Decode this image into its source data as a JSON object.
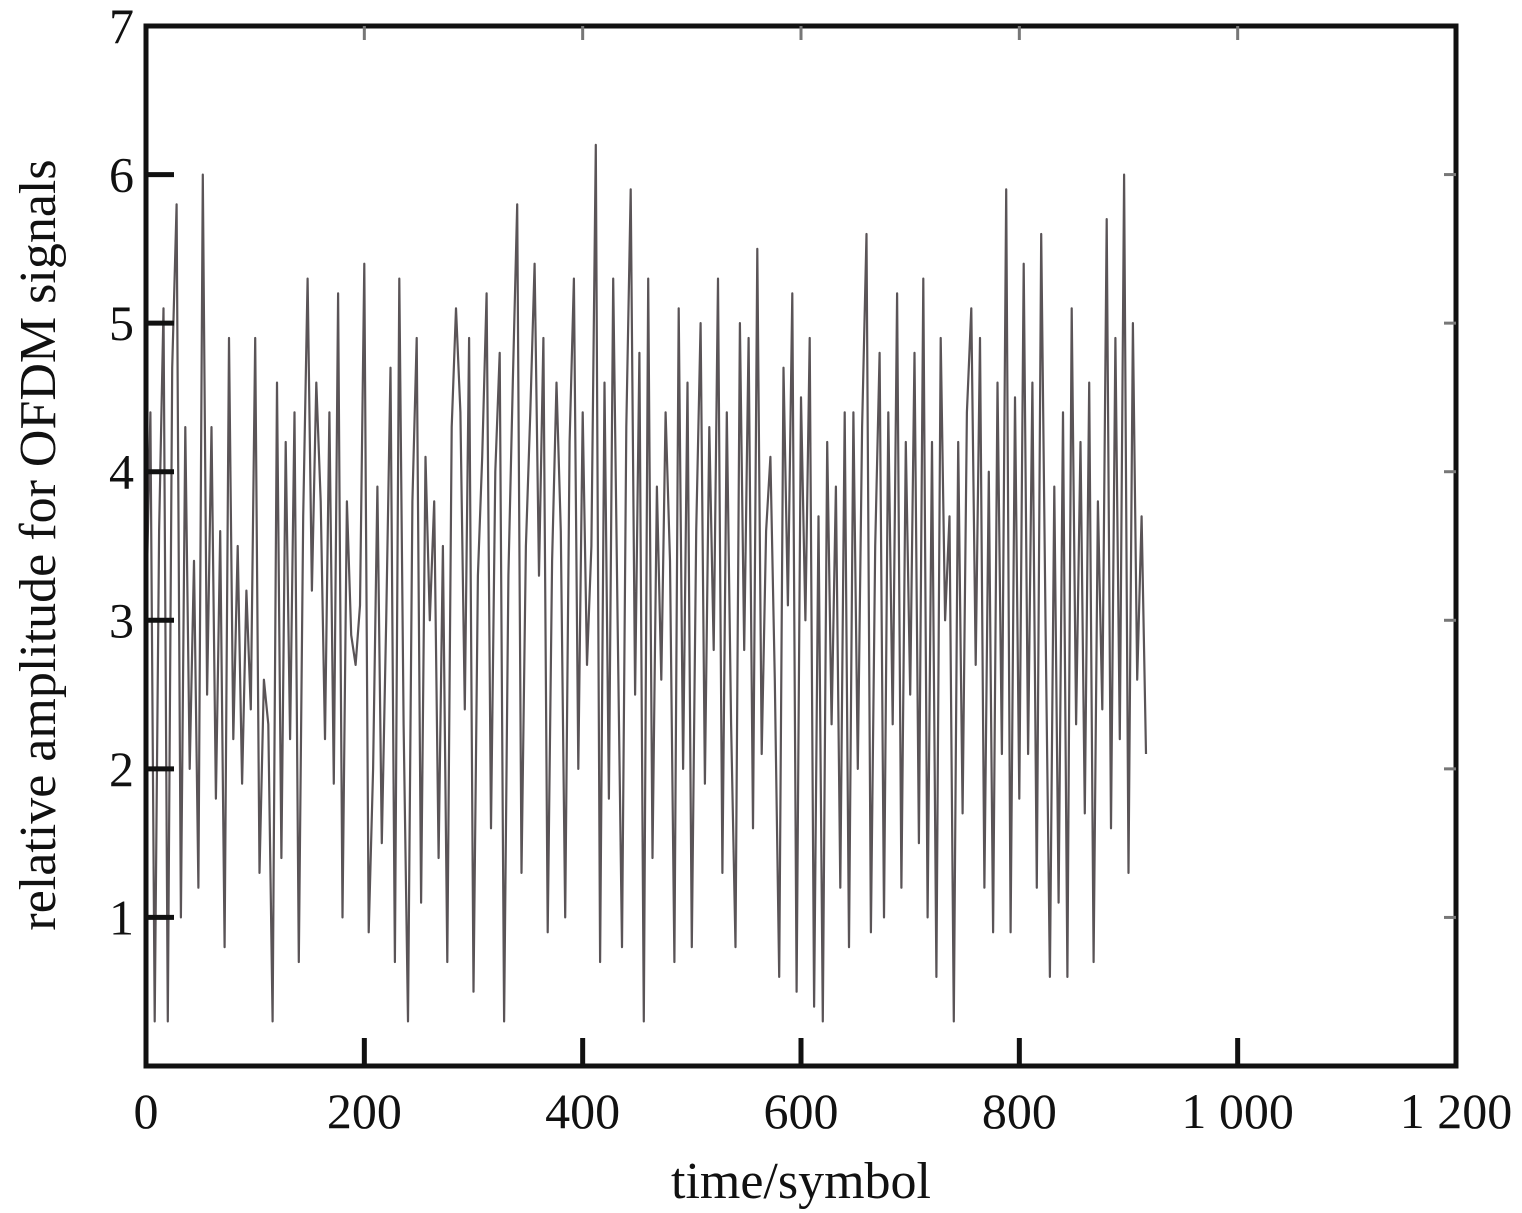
{
  "chart_data": {
    "type": "line",
    "title": "",
    "xlabel": "time/symbol",
    "ylabel": "relative amplitude for OFDM signals",
    "xlim": [
      0,
      1200
    ],
    "ylim": [
      0,
      7
    ],
    "xticks": [
      0,
      200,
      400,
      600,
      800,
      1000,
      1200
    ],
    "xtick_labels": [
      "0",
      "200",
      "400",
      "600",
      "800",
      "1 000",
      "1 200"
    ],
    "yticks": [
      1,
      2,
      3,
      4,
      5,
      6,
      7
    ],
    "ytick_labels": [
      "1",
      "2",
      "3",
      "4",
      "5",
      "6",
      "7"
    ],
    "grid": false,
    "legend": "none",
    "line_color": "#5a5457",
    "series": [
      {
        "x_start": 0,
        "x_step": 4,
        "values": [
          3.0,
          4.4,
          0.3,
          3.6,
          5.1,
          0.3,
          4.7,
          5.8,
          1.0,
          4.3,
          2.0,
          3.4,
          1.2,
          6.0,
          2.5,
          4.3,
          1.8,
          3.6,
          0.8,
          4.9,
          2.2,
          3.5,
          1.9,
          3.2,
          2.4,
          4.9,
          1.3,
          2.6,
          2.3,
          0.3,
          4.6,
          1.4,
          4.2,
          2.2,
          4.4,
          0.7,
          3.7,
          5.3,
          3.2,
          4.6,
          3.8,
          2.2,
          4.4,
          1.9,
          5.2,
          1.0,
          3.8,
          2.9,
          2.7,
          3.1,
          5.4,
          0.9,
          2.0,
          3.9,
          1.5,
          3.0,
          4.7,
          0.7,
          5.3,
          2.3,
          0.3,
          3.8,
          4.9,
          1.1,
          4.1,
          3.0,
          3.8,
          1.4,
          3.5,
          0.7,
          4.3,
          5.1,
          4.4,
          2.4,
          4.9,
          0.5,
          3.3,
          4.1,
          5.2,
          1.6,
          4.0,
          4.8,
          0.3,
          3.3,
          4.6,
          5.8,
          1.3,
          3.5,
          4.4,
          5.4,
          3.3,
          4.9,
          0.9,
          3.4,
          4.6,
          3.6,
          1.0,
          4.2,
          5.3,
          2.0,
          4.4,
          2.7,
          3.5,
          6.2,
          0.7,
          4.6,
          1.8,
          5.3,
          3.0,
          0.8,
          4.3,
          5.9,
          2.5,
          4.8,
          0.3,
          5.3,
          1.4,
          3.9,
          2.6,
          4.4,
          3.4,
          0.7,
          5.1,
          2.0,
          4.6,
          0.8,
          3.6,
          5.0,
          1.9,
          4.3,
          2.8,
          5.3,
          1.3,
          4.4,
          2.3,
          0.8,
          5.0,
          2.8,
          4.9,
          1.6,
          5.5,
          2.1,
          3.6,
          4.1,
          2.6,
          0.6,
          4.7,
          3.1,
          5.2,
          0.5,
          4.5,
          3.0,
          4.9,
          0.4,
          3.7,
          0.3,
          4.2,
          2.3,
          3.9,
          1.2,
          4.4,
          0.8,
          4.4,
          2.0,
          4.3,
          5.6,
          0.9,
          3.5,
          4.8,
          1.0,
          4.4,
          2.3,
          5.2,
          1.2,
          4.2,
          2.5,
          4.8,
          1.5,
          5.3,
          1.0,
          4.2,
          0.6,
          4.9,
          3.0,
          3.7,
          0.3,
          4.2,
          1.7,
          4.4,
          5.1,
          2.7,
          4.9,
          1.2,
          4.0,
          0.9,
          4.6,
          2.1,
          5.9,
          0.9,
          4.5,
          1.8,
          5.4,
          2.1,
          4.6,
          1.2,
          5.6,
          3.0,
          0.6,
          3.9,
          1.1,
          4.4,
          0.6,
          5.1,
          2.3,
          4.2,
          1.7,
          4.6,
          0.7,
          3.8,
          2.4,
          5.7,
          1.6,
          4.9,
          2.2,
          6.0,
          1.3,
          5.0,
          2.6,
          3.7,
          2.1
        ]
      }
    ]
  }
}
